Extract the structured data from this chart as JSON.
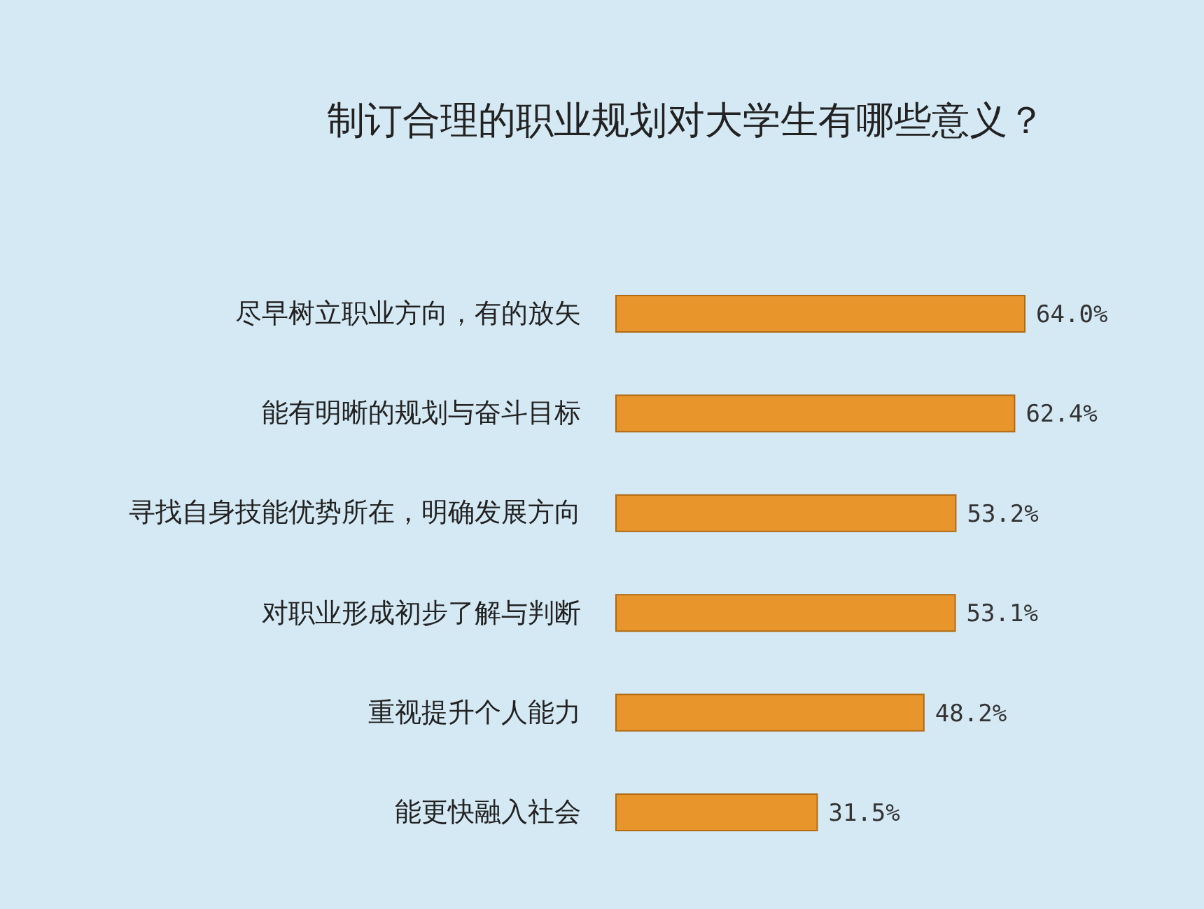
{
  "chart_data": {
    "type": "bar",
    "orientation": "horizontal",
    "title": "制订合理的职业规划对大学生有哪些意义？",
    "categories": [
      "尽早树立职业方向，有的放矢",
      "能有明晰的规划与奋斗目标",
      "寻找自身技能优势所在，明确发展方向",
      "对职业形成初步了解与判断",
      "重视提升个人能力",
      "能更快融入社会"
    ],
    "values": [
      64.0,
      62.4,
      53.2,
      53.1,
      48.2,
      31.5
    ],
    "value_labels": [
      "64.0%",
      "62.4%",
      "53.2%",
      "53.1%",
      "48.2%",
      "31.5%"
    ],
    "color": "#e8952c"
  }
}
